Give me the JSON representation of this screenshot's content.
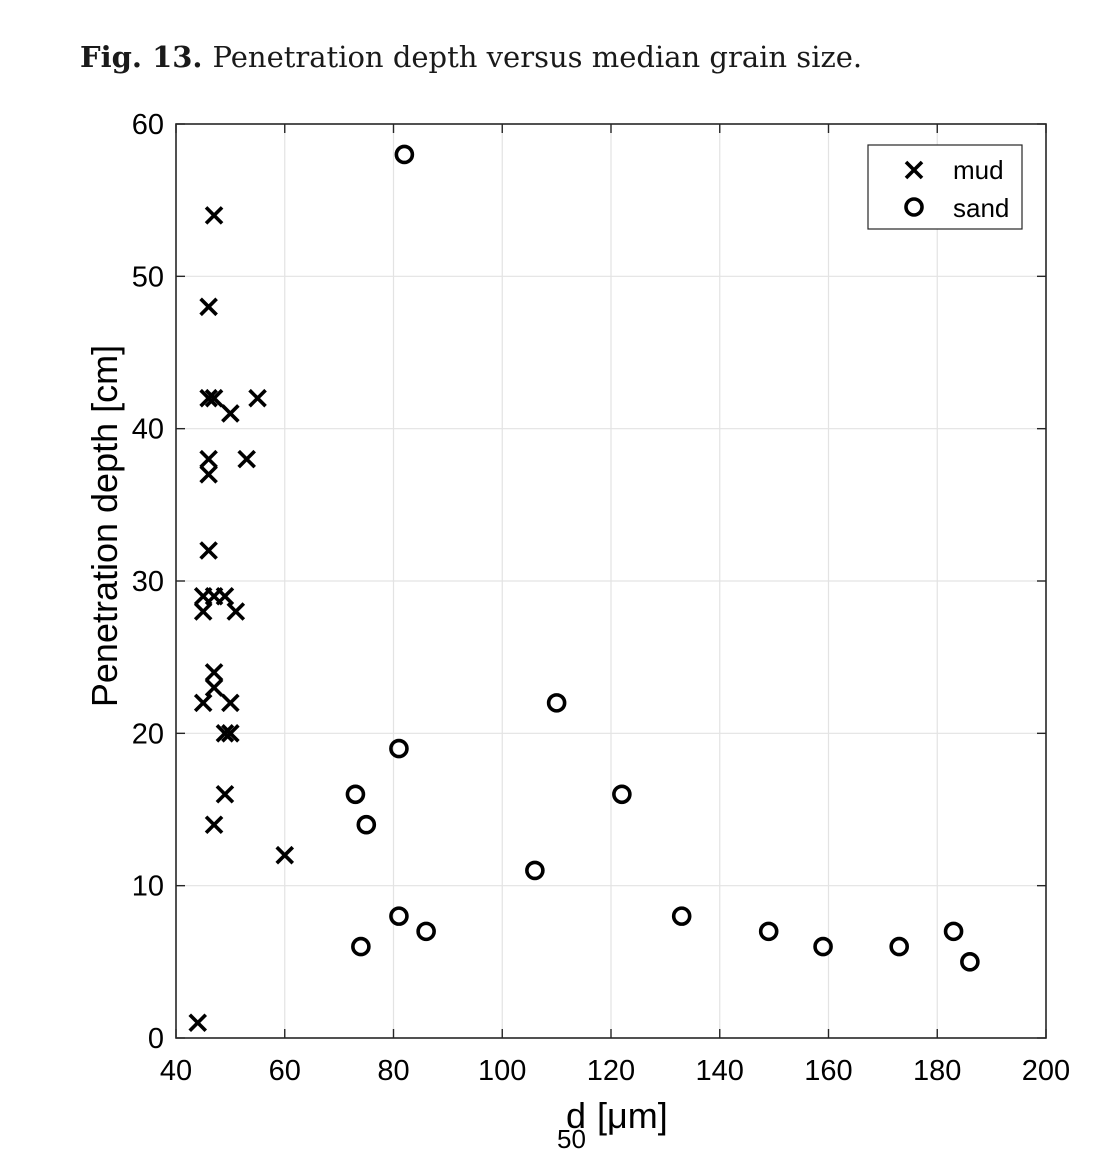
{
  "figure": {
    "caption_label": "Fig. 13.",
    "caption_text": "Penetration depth versus median grain size."
  },
  "chart_data": {
    "type": "scatter",
    "xlabel": "d",
    "xlabel_subscript": "50",
    "xlabel_unit": "[μm]",
    "ylabel": "Penetration depth [cm]",
    "xlim": [
      40,
      200
    ],
    "ylim": [
      0,
      60
    ],
    "xticks": [
      40,
      60,
      80,
      100,
      120,
      140,
      160,
      180,
      200
    ],
    "yticks": [
      0,
      10,
      20,
      30,
      40,
      50,
      60
    ],
    "grid": true,
    "legend_position": "top-right",
    "series": [
      {
        "name": "mud",
        "marker": "x",
        "color": "#000000",
        "points": [
          [
            47,
            54
          ],
          [
            46,
            48
          ],
          [
            46,
            42
          ],
          [
            47,
            42
          ],
          [
            55,
            42
          ],
          [
            50,
            41
          ],
          [
            46,
            38
          ],
          [
            53,
            38
          ],
          [
            46,
            37
          ],
          [
            46,
            32
          ],
          [
            45,
            29
          ],
          [
            47,
            29
          ],
          [
            49,
            29
          ],
          [
            45,
            28
          ],
          [
            51,
            28
          ],
          [
            47,
            24
          ],
          [
            47,
            23
          ],
          [
            45,
            22
          ],
          [
            50,
            22
          ],
          [
            49,
            20
          ],
          [
            50,
            20
          ],
          [
            49,
            16
          ],
          [
            47,
            14
          ],
          [
            60,
            12
          ],
          [
            44,
            1
          ]
        ]
      },
      {
        "name": "sand",
        "marker": "o",
        "color": "#000000",
        "points": [
          [
            82,
            58
          ],
          [
            110,
            22
          ],
          [
            81,
            19
          ],
          [
            73,
            16
          ],
          [
            122,
            16
          ],
          [
            75,
            14
          ],
          [
            106,
            11
          ],
          [
            81,
            8
          ],
          [
            133,
            8
          ],
          [
            86,
            7
          ],
          [
            149,
            7
          ],
          [
            183,
            7
          ],
          [
            74,
            6
          ],
          [
            159,
            6
          ],
          [
            173,
            6
          ],
          [
            186,
            5
          ]
        ]
      }
    ]
  }
}
